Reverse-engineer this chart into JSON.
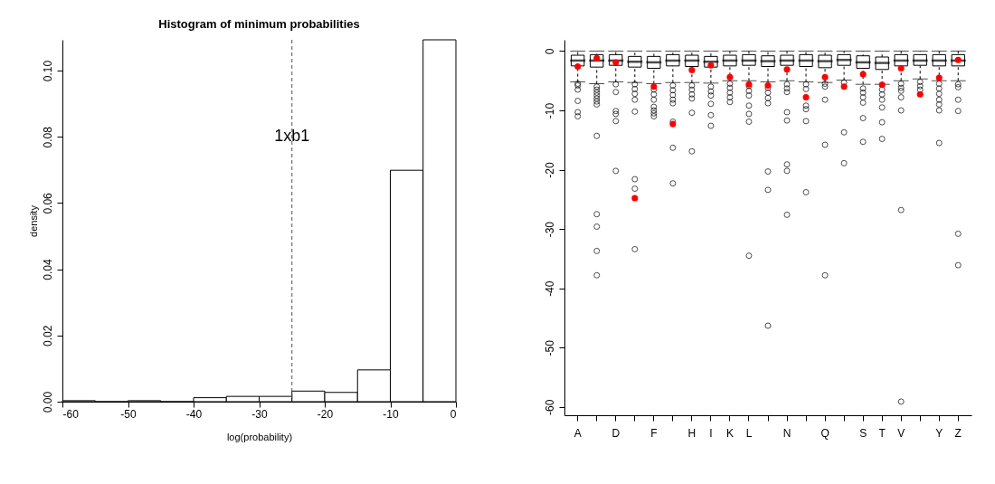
{
  "chart_data": [
    {
      "type": "histogram",
      "title": "Histogram of minimum probabilities",
      "xlabel": "log(probability)",
      "ylabel": "density",
      "color": "#ffffff",
      "bins": [
        -60,
        -55,
        -50,
        -45,
        -40,
        -35,
        -30,
        -25,
        -20,
        -15,
        -10,
        -5,
        0
      ],
      "values": [
        0.0003,
        0,
        0.0003,
        0,
        0.0012,
        0.0016,
        0.0016,
        0.0032,
        0.0028,
        0.0096,
        0.0699,
        0.1093
      ],
      "xlim": [
        -60,
        0
      ],
      "xticks": [
        -60,
        -50,
        -40,
        -30,
        -20,
        -10,
        0
      ],
      "ylim": [
        0,
        0.1093
      ],
      "yticks": [
        {
          "value": 0,
          "label": "0.00"
        },
        0.02,
        0.04,
        0.06,
        0.08,
        {
          "value": 0.1,
          "label": "0.10"
        }
      ],
      "ref_lines": [
        {
          "axis": "x",
          "value": -25,
          "line_style": "dashed"
        }
      ],
      "annotations": [
        {
          "text": "1xb1",
          "x": -25,
          "y": 0.08
        }
      ]
    },
    {
      "type": "box",
      "categories": [
        "A",
        null,
        "D",
        null,
        "F",
        null,
        "H",
        "I",
        "K",
        "L",
        null,
        "N",
        null,
        "Q",
        null,
        "S",
        "T",
        "V",
        null,
        "Y",
        "Z"
      ],
      "ylim": [
        -61.4,
        1.9
      ],
      "yticks": [
        0,
        -10,
        -20,
        -30,
        -40,
        -50,
        -60
      ],
      "boxes": [
        {
          "low": -5.2,
          "q1": -2.5,
          "median": -1.6,
          "q3": -0.7,
          "high": 0,
          "outliers": [
            -5.5,
            -5.8,
            -6.5,
            -8.4,
            -10.3,
            -11.0
          ]
        },
        {
          "low": -5.5,
          "q1": -2.7,
          "median": -1.6,
          "q3": -0.6,
          "high": 0,
          "outliers": [
            -6,
            -6.5,
            -7,
            -7.5,
            -8,
            -8.5,
            -9,
            -14.3,
            -27.5,
            -29.6,
            -33.7,
            -37.8
          ]
        },
        {
          "low": -5.2,
          "q1": -2.4,
          "median": -1.6,
          "q3": -0.6,
          "high": 0,
          "outliers": [
            -5.6,
            -6.9,
            -10.1,
            -10.6,
            -11.8,
            -20.2
          ]
        },
        {
          "low": -5.3,
          "q1": -2.7,
          "median": -1.8,
          "q3": -0.9,
          "high": 0,
          "outliers": [
            -5.6,
            -6.4,
            -7.2,
            -8.2,
            -10.2,
            -21.6,
            -23.2,
            -33.4
          ]
        },
        {
          "low": -5.5,
          "q1": -2.9,
          "median": -1.9,
          "q3": -0.9,
          "high": 0,
          "outliers": [
            -6.5,
            -7.3,
            -8.2,
            -9.4,
            -10.0,
            -10.5,
            -11.0
          ]
        },
        {
          "low": -5.3,
          "q1": -2.5,
          "median": -1.6,
          "q3": -0.6,
          "high": 0,
          "outliers": [
            -5.8,
            -6.6,
            -7.4,
            -8.2,
            -8.8,
            -11.9,
            -16.3,
            -22.3
          ]
        },
        {
          "low": -5.3,
          "q1": -2.6,
          "median": -1.6,
          "q3": -0.7,
          "high": 0,
          "outliers": [
            -5.8,
            -6.5,
            -7.3,
            -8.0,
            -10.4,
            -16.9
          ]
        },
        {
          "low": -5.4,
          "q1": -2.7,
          "median": -1.8,
          "q3": -0.9,
          "high": 0,
          "outliers": [
            -6.0,
            -6.8,
            -7.5,
            -8.9,
            -10.8,
            -12.6
          ]
        },
        {
          "low": -5.0,
          "q1": -2.5,
          "median": -1.6,
          "q3": -0.7,
          "high": 0,
          "outliers": [
            -5.5,
            -6.2,
            -7.0,
            -7.8,
            -8.6
          ]
        },
        {
          "low": -5.0,
          "q1": -2.4,
          "median": -1.6,
          "q3": -0.6,
          "high": 0,
          "outliers": [
            -5.9,
            -6.7,
            -7.5,
            -9.2,
            -10.6,
            -11.9,
            -34.5
          ]
        },
        {
          "low": -5.2,
          "q1": -2.6,
          "median": -1.7,
          "q3": -0.8,
          "high": 0,
          "outliers": [
            -6.2,
            -7.0,
            -7.9,
            -8.8,
            -20.3,
            -23.4,
            -46.3
          ]
        },
        {
          "low": -5.0,
          "q1": -2.4,
          "median": -1.6,
          "q3": -0.7,
          "high": 0,
          "outliers": [
            -5.6,
            -6.3,
            -6.9,
            -10.3,
            -11.7,
            -19.1,
            -20.2,
            -27.6
          ]
        },
        {
          "low": -5.2,
          "q1": -2.6,
          "median": -1.6,
          "q3": -0.6,
          "high": 0,
          "outliers": [
            -5.6,
            -6.4,
            -9.2,
            -9.8,
            -11.8,
            -23.8
          ]
        },
        {
          "low": -5.3,
          "q1": -2.8,
          "median": -1.7,
          "q3": -0.7,
          "high": 0,
          "outliers": [
            -5.5,
            -6.0,
            -8.2,
            -15.8,
            -37.8
          ]
        },
        {
          "low": -4.9,
          "q1": -2.4,
          "median": -1.5,
          "q3": -0.6,
          "high": 0,
          "outliers": [
            -5.3,
            -13.7,
            -18.9
          ]
        },
        {
          "low": -5.6,
          "q1": -2.9,
          "median": -1.9,
          "q3": -0.8,
          "high": 0,
          "outliers": [
            -6.3,
            -7.0,
            -7.8,
            -8.7,
            -11.3,
            -15.3
          ]
        },
        {
          "low": -5.6,
          "q1": -3.1,
          "median": -2.0,
          "q3": -1.0,
          "high": 0,
          "outliers": [
            -6.5,
            -7.3,
            -8.2,
            -9.5,
            -12.0,
            -14.8
          ]
        },
        {
          "low": -5.0,
          "q1": -2.5,
          "median": -1.6,
          "q3": -0.6,
          "high": 0,
          "outliers": [
            -5.5,
            -6.2,
            -6.7,
            -7.8,
            -10.0,
            -26.8,
            -59.1
          ]
        },
        {
          "low": -4.7,
          "q1": -2.4,
          "median": -1.6,
          "q3": -0.6,
          "high": 0,
          "outliers": [
            -5.2,
            -5.9,
            -6.5
          ]
        },
        {
          "low": -5.0,
          "q1": -2.5,
          "median": -1.6,
          "q3": -0.6,
          "high": 0,
          "outliers": [
            -5.5,
            -6.3,
            -7.2,
            -8.2,
            -9.0,
            -10.0,
            -15.5
          ]
        },
        {
          "low": -5.0,
          "q1": -2.5,
          "median": -1.6,
          "q3": -0.6,
          "high": 0,
          "outliers": [
            -5.6,
            -6.1,
            -8.2,
            -10.1,
            -30.8,
            -36.1
          ]
        }
      ],
      "series": [
        {
          "type": "scatter",
          "color": "#ff0000",
          "values": [
            -2.6,
            -1.2,
            -1.9,
            -24.8,
            -6.0,
            -12.3,
            -3.2,
            -2.4,
            -4.4,
            -5.6,
            -5.8,
            -3.1,
            -7.8,
            -4.4,
            -6.0,
            -3.9,
            -5.7,
            -2.9,
            -7.3,
            -4.5,
            -1.5
          ]
        }
      ]
    }
  ]
}
